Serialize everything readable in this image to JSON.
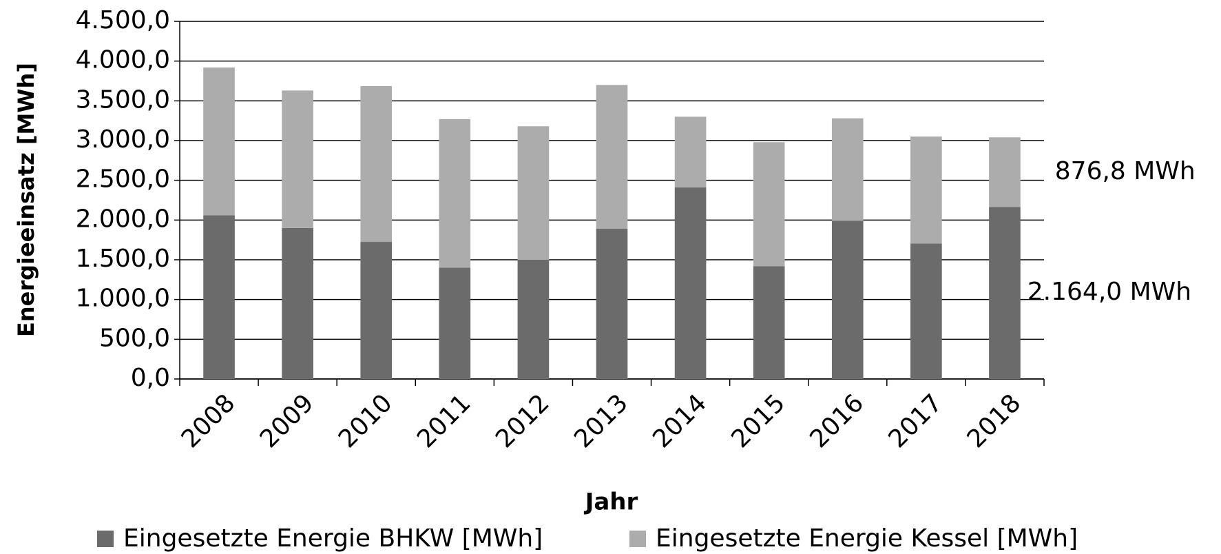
{
  "chart_data": {
    "type": "bar",
    "stacked": true,
    "x_label": "Jahr",
    "y_label": "Energieeinsatz [MWh]",
    "categories": [
      "2008",
      "2009",
      "2010",
      "2011",
      "2012",
      "2013",
      "2014",
      "2015",
      "2016",
      "2017",
      "2018"
    ],
    "series": [
      {
        "name": "Eingesetzte Energie BHKW [MWh]",
        "color": "#6b6b6b",
        "values": [
          2060,
          1900,
          1725,
          1400,
          1500,
          1890,
          2410,
          1420,
          1990,
          1705,
          2164.0
        ],
        "value_labels": [
          null,
          null,
          null,
          null,
          null,
          null,
          null,
          null,
          null,
          null,
          "2.164,0 MWh"
        ]
      },
      {
        "name": "Eingesetzte Energie Kessel [MWh]",
        "color": "#acacac",
        "values": [
          1860,
          1730,
          1960,
          1870,
          1680,
          1810,
          890,
          1560,
          1290,
          1345,
          876.8
        ],
        "value_labels": [
          null,
          null,
          null,
          null,
          null,
          null,
          null,
          null,
          null,
          null,
          "876,8 MWh"
        ]
      }
    ],
    "ylim": [
      0,
      4500
    ],
    "yticks": [
      {
        "value": 0,
        "label": "0,0"
      },
      {
        "value": 500,
        "label": "500,0"
      },
      {
        "value": 1000,
        "label": "1.000,0"
      },
      {
        "value": 1500,
        "label": "1.500,0"
      },
      {
        "value": 2000,
        "label": "2.000,0"
      },
      {
        "value": 2500,
        "label": "2.500,0"
      },
      {
        "value": 3000,
        "label": "3.000,0"
      },
      {
        "value": 3500,
        "label": "3.500,0"
      },
      {
        "value": 4000,
        "label": "4.000,0"
      },
      {
        "value": 4500,
        "label": "4.500,0"
      }
    ],
    "grid": true,
    "legend": "bottom"
  }
}
